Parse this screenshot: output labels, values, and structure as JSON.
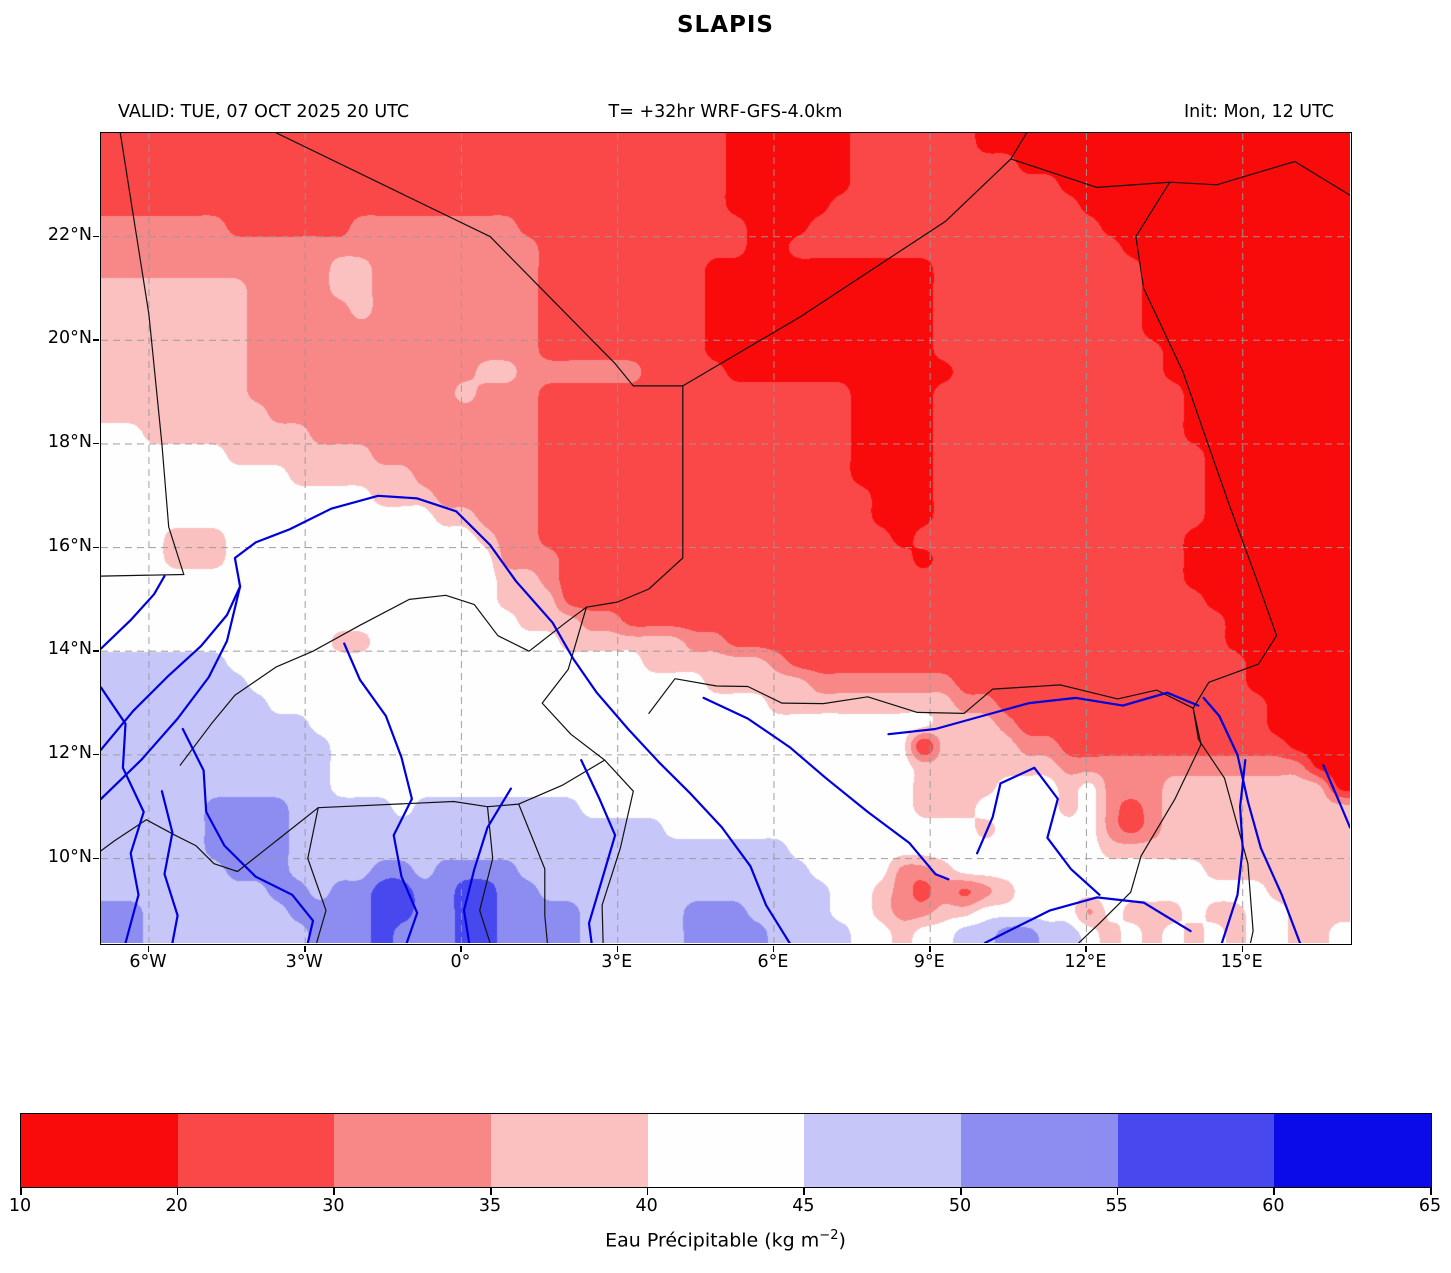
{
  "title": "SLAPIS",
  "header": {
    "valid": "VALID: TUE, 07 OCT 2025 20 UTC",
    "model": "T= +32hr WRF-GFS-4.0km",
    "init": "Init: Mon, 12 UTC"
  },
  "axes": {
    "x_ticks": [
      {
        "label": "6°W",
        "lon": -6
      },
      {
        "label": "3°W",
        "lon": -3
      },
      {
        "label": "0°",
        "lon": 0
      },
      {
        "label": "3°E",
        "lon": 3
      },
      {
        "label": "6°E",
        "lon": 6
      },
      {
        "label": "9°E",
        "lon": 9
      },
      {
        "label": "12°E",
        "lon": 12
      },
      {
        "label": "15°E",
        "lon": 15
      }
    ],
    "y_ticks": [
      {
        "label": "22°N",
        "lat": 22
      },
      {
        "label": "20°N",
        "lat": 20
      },
      {
        "label": "18°N",
        "lat": 18
      },
      {
        "label": "16°N",
        "lat": 16
      },
      {
        "label": "14°N",
        "lat": 14
      },
      {
        "label": "12°N",
        "lat": 12
      },
      {
        "label": "10°N",
        "lat": 10
      }
    ]
  },
  "colorbar": {
    "levels": [
      10,
      20,
      30,
      35,
      40,
      45,
      50,
      55,
      60,
      65
    ],
    "colors": [
      "#fa0b0b",
      "#fa4747",
      "#f88888",
      "#fbc1c1",
      "#fefefe",
      "#c6c6f8",
      "#8d8df1",
      "#4848ef",
      "#0b0bea"
    ],
    "label_prefix": "Eau Précipitable (kg m",
    "label_sup": "−2",
    "label_suffix": ")"
  },
  "chart_data": {
    "type": "heatmap",
    "title": "SLAPIS",
    "variable": "Eau Précipitable (kg m⁻²)",
    "valid_time": "TUE, 07 OCT 2025 20 UTC",
    "init_time": "Mon, 12 UTC",
    "forecast": "T= +32hr WRF-GFS-4.0km",
    "extent": {
      "lon_min": -6.92,
      "lon_max": 17.06,
      "lat_min": 8.37,
      "lat_max": 24.0
    },
    "levels": [
      10,
      20,
      30,
      35,
      40,
      45,
      50,
      55,
      60,
      65
    ],
    "colors": [
      "#fa0b0b",
      "#fa4747",
      "#f88888",
      "#fbc1c1",
      "#fefefe",
      "#c6c6f8",
      "#8d8df1",
      "#4848ef",
      "#0b0bea"
    ],
    "grid_encoding": "rows north-to-south; each digit = bin index into levels (0 => 10-20 kg/m2 ... 8 => 60-65 kg/m2)",
    "grid": [
      "111111111111111111111111111111000000111111000000000000000000",
      "111111111111111111111111111111000000111111110000000000000000",
      "111111111111111111111111111111000000111111111100000000000000",
      "111111111111111111111111111111000001111111111110000000000000",
      "222222111111222222221111111111100011111111111111000000000000",
      "222222222222222222222111111111100111111111111111100000000000",
      "222222222223322222222111111110000000000011111111110000000000",
      "333333322223322222222111111110000000000011111111110000000000",
      "333333322222322222222111111110000000000011111111110000000000",
      "333333322222222222222111111110000000000011111111110000000000",
      "333333322222222222222111111110000000000011111111111000000000",
      "333333322222222222332222221111000000000001111111111000000000",
      "333333322222222223222111111111111111000011111111111100000000",
      "333333332222222222222111111111111111000011111111111100000000",
      "443333333322222222222111111111111111000011111111111100000000",
      "444444333333322222222111111111111111000011111111111110000000",
      "444444444333333222222111111111111111000011111111111110000000",
      "444444444444433322222111111111111111100011111111111110000000",
      "444444444444444433222111111111111111100011111111111110000000",
      "444333444444444444322111111111111111110111111111111100000000",
      "444333444444444444422211111111111111111011111111111100000000",
      "444444444444444444433211111111111111111111111111111100000000",
      "444444444444444444433311111111111111111111111111111110000000",
      "444444444444444444443332211111111111111111111111111111000000",
      "444444444443344444444433333322111111111111111111111111000000",
      "555555444444444444444444443333332111111111111111111111100000",
      "555555544444444444444444444443333322222221111111111111100000",
      "555555554444444444444444444444443333333332211111111111110000",
      "555555555544444444444444444444444444444433321111111111110000",
      "555555555554444444444444444444444444444033332211111111111000",
      "555555555554444444444444444444444444444333333322222222222200",
      "555555555554444444444444444444444444444333344434222333333330",
      "555556666555554555555554444444444444444333444434212333333333",
      "555556666555555555555555555444444444444444344444212333333333",
      "555556666555555555555555555555555444444444444444333333333333",
      "555555666555566566665555555555555544442234444444444443333333",
      "555555556656677667766555555555555554432121234444444444443333",
      "665555555666677667766665555566655554432233444442433343344333",
      "665555555566676667766665555566665555443445566554343434344334"
    ],
    "gridline_lons": [
      -6,
      -3,
      0,
      3,
      6,
      9,
      12,
      15
    ],
    "gridline_lats": [
      10,
      12,
      14,
      16,
      18,
      20,
      22
    ],
    "borders": [
      [
        [
          -6.55,
          24
        ],
        [
          -6.0,
          20.5
        ],
        [
          -5.75,
          18.0
        ],
        [
          -5.62,
          16.4
        ],
        [
          -5.33,
          15.48
        ]
      ],
      [
        [
          -5.33,
          15.48
        ],
        [
          -6.92,
          15.45
        ]
      ],
      [
        [
          -3.55,
          24
        ],
        [
          0.55,
          22.0
        ],
        [
          2.95,
          19.55
        ],
        [
          3.3,
          19.12
        ],
        [
          4.25,
          19.12
        ]
      ],
      [
        [
          4.25,
          19.12
        ],
        [
          6.5,
          20.45
        ],
        [
          9.3,
          22.3
        ],
        [
          10.55,
          23.5
        ]
      ],
      [
        [
          10.55,
          23.5
        ],
        [
          10.85,
          24
        ]
      ],
      [
        [
          10.55,
          23.5
        ],
        [
          12.2,
          22.95
        ],
        [
          13.6,
          23.05
        ],
        [
          14.5,
          23.0
        ],
        [
          16.0,
          23.45
        ],
        [
          17.06,
          22.8
        ]
      ],
      [
        [
          13.6,
          23.05
        ],
        [
          12.95,
          22.0
        ],
        [
          13.1,
          21.0
        ],
        [
          13.45,
          20.25
        ],
        [
          13.85,
          19.4
        ],
        [
          14.3,
          18.1
        ],
        [
          14.75,
          16.8
        ],
        [
          15.3,
          15.3
        ],
        [
          15.65,
          14.3
        ],
        [
          15.3,
          13.75
        ],
        [
          14.35,
          13.4
        ],
        [
          14.05,
          12.9
        ],
        [
          14.15,
          12.3
        ],
        [
          14.65,
          11.55
        ],
        [
          15.1,
          9.9
        ],
        [
          15.2,
          8.6
        ],
        [
          15.15,
          8.37
        ]
      ],
      [
        [
          4.25,
          19.12
        ],
        [
          4.25,
          15.8
        ],
        [
          3.6,
          15.2
        ],
        [
          3.0,
          14.95
        ],
        [
          2.4,
          14.85
        ]
      ],
      [
        [
          -5.4,
          11.8
        ],
        [
          -4.8,
          12.6
        ],
        [
          -4.35,
          13.15
        ],
        [
          -3.55,
          13.7
        ],
        [
          -2.85,
          14.0
        ],
        [
          -1.95,
          14.5
        ],
        [
          -1.0,
          15.0
        ],
        [
          -0.3,
          15.08
        ],
        [
          0.25,
          14.9
        ],
        [
          0.7,
          14.3
        ],
        [
          1.3,
          14.0
        ],
        [
          2.0,
          14.55
        ],
        [
          2.4,
          14.85
        ]
      ],
      [
        [
          2.4,
          14.85
        ],
        [
          2.05,
          13.65
        ],
        [
          1.55,
          13.0
        ],
        [
          2.1,
          12.4
        ],
        [
          2.75,
          11.9
        ],
        [
          1.95,
          11.42
        ],
        [
          1.1,
          11.05
        ],
        [
          0.5,
          11.0
        ],
        [
          -0.15,
          11.1
        ],
        [
          -2.75,
          10.98
        ],
        [
          -4.3,
          9.75
        ],
        [
          -4.75,
          9.9
        ],
        [
          -5.1,
          10.25
        ],
        [
          -5.5,
          10.45
        ],
        [
          -6.05,
          10.75
        ],
        [
          -6.65,
          10.35
        ],
        [
          -6.92,
          10.15
        ]
      ],
      [
        [
          0.5,
          11.0
        ],
        [
          0.6,
          10.0
        ],
        [
          0.35,
          9.0
        ],
        [
          0.55,
          8.37
        ]
      ],
      [
        [
          1.1,
          11.05
        ],
        [
          1.6,
          9.8
        ],
        [
          1.6,
          8.9
        ],
        [
          1.65,
          8.37
        ]
      ],
      [
        [
          2.75,
          11.9
        ],
        [
          3.3,
          11.3
        ],
        [
          3.05,
          10.2
        ],
        [
          2.7,
          9.1
        ],
        [
          2.72,
          8.37
        ]
      ],
      [
        [
          3.6,
          12.8
        ],
        [
          4.1,
          13.47
        ],
        [
          4.9,
          13.33
        ],
        [
          5.5,
          13.32
        ],
        [
          6.15,
          13.0
        ],
        [
          6.95,
          12.99
        ],
        [
          7.8,
          13.12
        ],
        [
          8.75,
          12.82
        ],
        [
          9.65,
          12.8
        ],
        [
          10.2,
          13.27
        ],
        [
          11.5,
          13.35
        ],
        [
          12.6,
          13.08
        ],
        [
          13.35,
          13.25
        ],
        [
          14.05,
          12.9
        ]
      ],
      [
        [
          -2.75,
          10.98
        ],
        [
          -2.95,
          10.0
        ],
        [
          -2.6,
          9.0
        ],
        [
          -2.78,
          8.37
        ]
      ],
      [
        [
          14.05,
          12.9
        ],
        [
          14.2,
          12.2
        ],
        [
          13.7,
          11.15
        ],
        [
          13.05,
          10.05
        ],
        [
          12.85,
          9.35
        ],
        [
          12.25,
          8.75
        ],
        [
          11.85,
          8.37
        ]
      ]
    ],
    "rivers": [
      [
        [
          -6.92,
          12.1
        ],
        [
          -6.3,
          12.85
        ],
        [
          -5.65,
          13.5
        ],
        [
          -5.0,
          14.1
        ],
        [
          -4.5,
          14.7
        ],
        [
          -4.25,
          15.25
        ],
        [
          -4.35,
          15.8
        ],
        [
          -3.95,
          16.1
        ],
        [
          -3.3,
          16.35
        ],
        [
          -2.5,
          16.75
        ],
        [
          -1.6,
          17.0
        ],
        [
          -0.85,
          16.95
        ],
        [
          -0.1,
          16.7
        ],
        [
          0.55,
          16.05
        ],
        [
          1.05,
          15.35
        ],
        [
          1.75,
          14.55
        ],
        [
          2.15,
          13.85
        ],
        [
          2.6,
          13.2
        ],
        [
          3.2,
          12.5
        ],
        [
          3.8,
          11.85
        ],
        [
          4.4,
          11.25
        ],
        [
          5.0,
          10.6
        ],
        [
          5.55,
          9.85
        ],
        [
          5.85,
          9.1
        ],
        [
          6.3,
          8.37
        ]
      ],
      [
        [
          -6.92,
          11.15
        ],
        [
          -6.15,
          11.9
        ],
        [
          -5.45,
          12.7
        ],
        [
          -4.85,
          13.5
        ],
        [
          -4.5,
          14.2
        ],
        [
          -4.25,
          15.25
        ]
      ],
      [
        [
          -6.92,
          13.3
        ],
        [
          -6.45,
          12.6
        ],
        [
          -6.5,
          11.75
        ],
        [
          -6.1,
          10.9
        ],
        [
          -6.35,
          10.1
        ],
        [
          -6.2,
          9.3
        ],
        [
          -6.45,
          8.37
        ]
      ],
      [
        [
          -5.75,
          11.3
        ],
        [
          -5.55,
          10.5
        ],
        [
          -5.7,
          9.7
        ],
        [
          -5.45,
          8.9
        ],
        [
          -5.55,
          8.37
        ]
      ],
      [
        [
          -5.35,
          12.5
        ],
        [
          -4.95,
          11.7
        ],
        [
          -4.9,
          10.9
        ],
        [
          -4.55,
          10.25
        ],
        [
          -3.95,
          9.65
        ],
        [
          -3.25,
          9.3
        ],
        [
          -2.85,
          8.8
        ],
        [
          -2.95,
          8.37
        ]
      ],
      [
        [
          -2.25,
          14.15
        ],
        [
          -1.95,
          13.45
        ],
        [
          -1.45,
          12.75
        ],
        [
          -1.15,
          11.95
        ],
        [
          -0.95,
          11.15
        ],
        [
          -1.3,
          10.45
        ],
        [
          -1.15,
          9.65
        ],
        [
          -0.85,
          8.95
        ],
        [
          -1.05,
          8.37
        ]
      ],
      [
        [
          0.95,
          11.35
        ],
        [
          0.5,
          10.6
        ],
        [
          0.25,
          9.8
        ],
        [
          0.05,
          9.0
        ],
        [
          0.15,
          8.37
        ]
      ],
      [
        [
          2.3,
          11.9
        ],
        [
          2.65,
          11.15
        ],
        [
          2.95,
          10.45
        ],
        [
          2.7,
          9.6
        ],
        [
          2.45,
          8.75
        ],
        [
          2.5,
          8.37
        ]
      ],
      [
        [
          4.65,
          13.1
        ],
        [
          5.5,
          12.7
        ],
        [
          6.3,
          12.15
        ],
        [
          7.0,
          11.55
        ],
        [
          7.8,
          10.9
        ],
        [
          8.6,
          10.3
        ],
        [
          9.1,
          9.7
        ],
        [
          9.35,
          9.6
        ]
      ],
      [
        [
          9.9,
          10.1
        ],
        [
          10.2,
          10.8
        ],
        [
          10.35,
          11.45
        ],
        [
          11.0,
          11.75
        ],
        [
          11.45,
          11.15
        ],
        [
          11.25,
          10.4
        ],
        [
          11.7,
          9.8
        ],
        [
          12.25,
          9.3
        ]
      ],
      [
        [
          8.2,
          12.4
        ],
        [
          9.1,
          12.5
        ],
        [
          10.0,
          12.75
        ],
        [
          10.9,
          13.0
        ],
        [
          11.8,
          13.1
        ],
        [
          12.7,
          12.95
        ],
        [
          13.55,
          13.2
        ],
        [
          14.15,
          12.95
        ]
      ],
      [
        [
          16.1,
          8.37
        ],
        [
          15.75,
          9.3
        ],
        [
          15.35,
          10.2
        ],
        [
          15.1,
          11.1
        ],
        [
          14.9,
          12.0
        ],
        [
          14.55,
          12.75
        ],
        [
          14.25,
          13.1
        ]
      ],
      [
        [
          14.6,
          8.37
        ],
        [
          14.9,
          9.3
        ],
        [
          15.0,
          10.2
        ],
        [
          14.95,
          11.0
        ],
        [
          15.05,
          11.9
        ]
      ],
      [
        [
          14.0,
          8.6
        ],
        [
          13.1,
          9.15
        ],
        [
          12.2,
          9.25
        ],
        [
          11.3,
          9.0
        ],
        [
          10.5,
          8.6
        ],
        [
          10.05,
          8.37
        ]
      ],
      [
        [
          16.55,
          11.8
        ],
        [
          16.85,
          11.1
        ],
        [
          17.06,
          10.6
        ]
      ],
      [
        [
          -6.92,
          14.05
        ],
        [
          -6.35,
          14.6
        ],
        [
          -5.9,
          15.1
        ],
        [
          -5.7,
          15.45
        ]
      ]
    ]
  }
}
